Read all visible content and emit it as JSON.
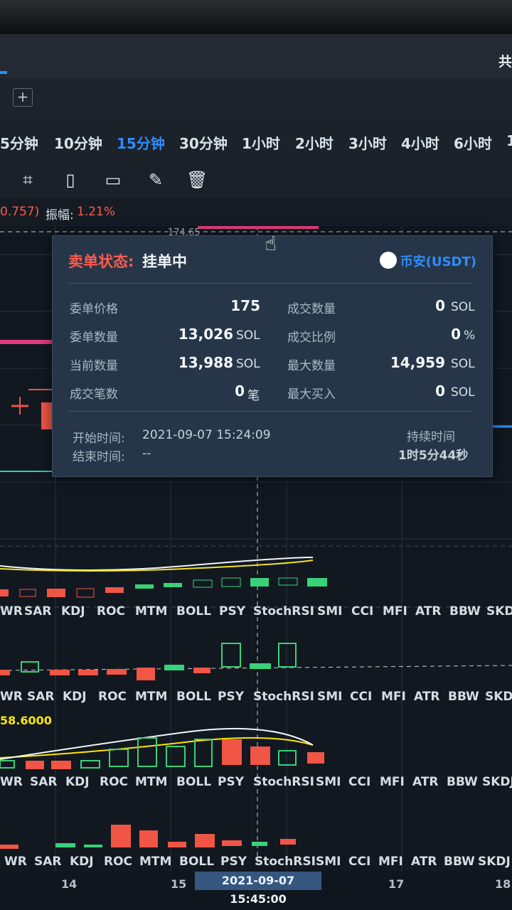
{
  "header": {
    "brand": "共",
    "intervals": [
      {
        "label": "5分钟"
      },
      {
        "label": "10分钟"
      },
      {
        "label": "15分钟"
      },
      {
        "label": "30分钟"
      },
      {
        "label": "1小时"
      },
      {
        "label": "2小时"
      },
      {
        "label": "3小时"
      },
      {
        "label": "4小时"
      },
      {
        "label": "6小时"
      },
      {
        "label": "1"
      }
    ],
    "active_interval": "15分钟"
  },
  "toolbar": {
    "tools": [
      "ruler-icon",
      "document-icon",
      "bookmark-icon",
      "edit-icon",
      "trash-icon"
    ]
  },
  "info": {
    "change": "0.757)",
    "amplitude_label": "振幅:",
    "amplitude_value": "1.21%"
  },
  "order_modal": {
    "title_label": "卖单状态:",
    "title_value": "挂单中",
    "exchange": "币安(USDT)",
    "rows": [
      {
        "left_label": "委单价格",
        "left_value": "175",
        "left_unit": "",
        "right_label": "成交数量",
        "right_value": "0",
        "right_unit": "SOL"
      },
      {
        "left_label": "委单数量",
        "left_value": "13,026",
        "left_unit": "SOL",
        "right_label": "成交比例",
        "right_value": "0",
        "right_unit": "%"
      },
      {
        "left_label": "当前数量",
        "left_value": "13,988",
        "left_unit": "SOL",
        "right_label": "最大数量",
        "right_value": "14,959",
        "right_unit": "SOL"
      },
      {
        "left_label": "成交笔数",
        "left_value": "0",
        "left_unit": "笔",
        "right_label": "最大买入",
        "right_value": "0",
        "right_unit": "SOL"
      }
    ],
    "start_label": "开始时间:",
    "start_value": "2021-09-07 15:24:09",
    "end_label": "结束时间:",
    "end_value": "--",
    "duration_label": "持续时间",
    "duration_value": "1时5分44秒"
  },
  "indicators": {
    "rows": [
      [
        "WR",
        "SAR",
        "KDJ",
        "ROC",
        "MTM",
        "BOLL",
        "PSY",
        "StochRSI",
        "SMI",
        "CCI",
        "MFI",
        "ATR",
        "BBW",
        "SKD"
      ],
      [
        "WR",
        "SAR",
        "KDJ",
        "ROC",
        "MTM",
        "BOLL",
        "PSY",
        "StochRSI",
        "SMI",
        "CCI",
        "MFI",
        "ATR",
        "BBW",
        "SKDJ"
      ],
      [
        "WR",
        "SAR",
        "KDJ",
        "ROC",
        "MTM",
        "BOLL",
        "PSY",
        "StochRSI",
        "SMI",
        "CCI",
        "MFI",
        "ATR",
        "BBW",
        "SKDJ"
      ],
      [
        "WR",
        "SAR",
        "KDJ",
        "ROC",
        "MTM",
        "BOLL",
        "PSY",
        "StochRSI",
        "SMI",
        "CCI",
        "MFI",
        "ATR",
        "BBW",
        "SKDJ"
      ]
    ],
    "value_flag": "58.6000"
  },
  "time_axis": {
    "labels": [
      {
        "text": "14"
      },
      {
        "text": "15"
      },
      {
        "text": "17"
      },
      {
        "text": "18"
      }
    ],
    "selected": "2021-09-07 15:45:00"
  },
  "price_label": "174.65",
  "colors": {
    "accent": "#2f8cff",
    "sell": "#ff5b4f",
    "buy": "#39d17a"
  }
}
